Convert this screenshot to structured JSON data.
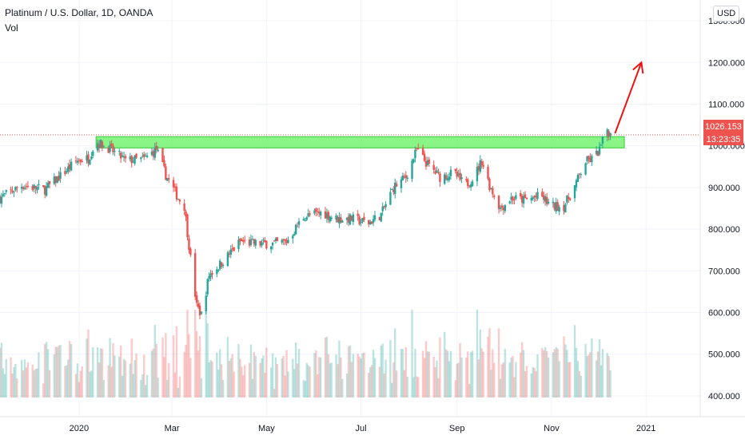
{
  "header": {
    "title": "Platinum / U.S. Dollar, 1D, OANDA",
    "volume_label": "Vol"
  },
  "currency_button": "USD",
  "price_axis": {
    "ticks": [
      "1300.000",
      "1200.000",
      "1100.000",
      "1000.000",
      "900.000",
      "800.000",
      "700.000",
      "600.000",
      "500.000",
      "400.000"
    ]
  },
  "time_axis": {
    "ticks": [
      "2020",
      "Mar",
      "May",
      "Jul",
      "Sep",
      "Nov",
      "2021"
    ]
  },
  "last_price": {
    "value": "1026.153",
    "countdown": "13:23:35"
  },
  "colors": {
    "up": "#26a69a",
    "down": "#ef5350",
    "zone_fill": "#7cf47a",
    "zone_border": "#21c521",
    "arrow": "#ee1111"
  },
  "chart_data": {
    "type": "candlestick",
    "title": "Platinum / U.S. Dollar, 1D, OANDA",
    "currency": "USD",
    "ylim": [
      350,
      1350
    ],
    "xlim": [
      "2019-11-11",
      "2021-02-05"
    ],
    "yticks": [
      1300,
      1200,
      1100,
      1000,
      900,
      800,
      700,
      600,
      500,
      400
    ],
    "xticks": [
      {
        "label": "2020",
        "date": "2020-01-01"
      },
      {
        "label": "Mar",
        "date": "2020-03-01"
      },
      {
        "label": "May",
        "date": "2020-05-01"
      },
      {
        "label": "Jul",
        "date": "2020-07-01"
      },
      {
        "label": "Sep",
        "date": "2020-09-01"
      },
      {
        "label": "Nov",
        "date": "2020-11-01"
      },
      {
        "label": "2021",
        "date": "2021-01-01"
      }
    ],
    "last_price": 1026.153,
    "close_path": [
      [
        "2019-11-11",
        875
      ],
      [
        "2019-11-25",
        905
      ],
      [
        "2019-12-10",
        895
      ],
      [
        "2019-12-31",
        965
      ],
      [
        "2020-01-07",
        970
      ],
      [
        "2020-01-12",
        1010
      ],
      [
        "2020-01-20",
        995
      ],
      [
        "2020-01-31",
        965
      ],
      [
        "2020-02-12",
        968
      ],
      [
        "2020-02-20",
        992
      ],
      [
        "2020-02-26",
        930
      ],
      [
        "2020-03-05",
        875
      ],
      [
        "2020-03-09",
        855
      ],
      [
        "2020-03-13",
        730
      ],
      [
        "2020-03-17",
        615
      ],
      [
        "2020-03-20",
        595
      ],
      [
        "2020-03-25",
        690
      ],
      [
        "2020-04-01",
        715
      ],
      [
        "2020-04-14",
        770
      ],
      [
        "2020-04-25",
        765
      ],
      [
        "2020-05-05",
        765
      ],
      [
        "2020-05-14",
        770
      ],
      [
        "2020-05-25",
        830
      ],
      [
        "2020-06-06",
        840
      ],
      [
        "2020-06-15",
        825
      ],
      [
        "2020-06-25",
        825
      ],
      [
        "2020-07-06",
        815
      ],
      [
        "2020-07-14",
        835
      ],
      [
        "2020-07-22",
        900
      ],
      [
        "2020-07-30",
        925
      ],
      [
        "2020-08-06",
        990
      ],
      [
        "2020-08-13",
        955
      ],
      [
        "2020-08-21",
        925
      ],
      [
        "2020-08-30",
        935
      ],
      [
        "2020-09-06",
        905
      ],
      [
        "2020-09-12",
        925
      ],
      [
        "2020-09-17",
        965
      ],
      [
        "2020-09-22",
        905
      ],
      [
        "2020-09-29",
        850
      ],
      [
        "2020-10-06",
        875
      ],
      [
        "2020-10-15",
        870
      ],
      [
        "2020-10-25",
        880
      ],
      [
        "2020-11-01",
        855
      ],
      [
        "2020-11-09",
        855
      ],
      [
        "2020-11-15",
        895
      ],
      [
        "2020-11-23",
        962
      ],
      [
        "2020-11-28",
        970
      ],
      [
        "2020-12-02",
        990
      ],
      [
        "2020-12-07",
        1040
      ],
      [
        "2020-12-09",
        1026
      ]
    ],
    "annotations": {
      "zone": {
        "from": "2020-01-12",
        "to": "2020-12-18",
        "low": 995,
        "high": 1022,
        "color": "#7cf47a"
      },
      "arrow": {
        "from": [
          "2020-12-12",
          1030
        ],
        "to": [
          "2020-12-29",
          1200
        ],
        "color": "#ee1111"
      }
    }
  }
}
